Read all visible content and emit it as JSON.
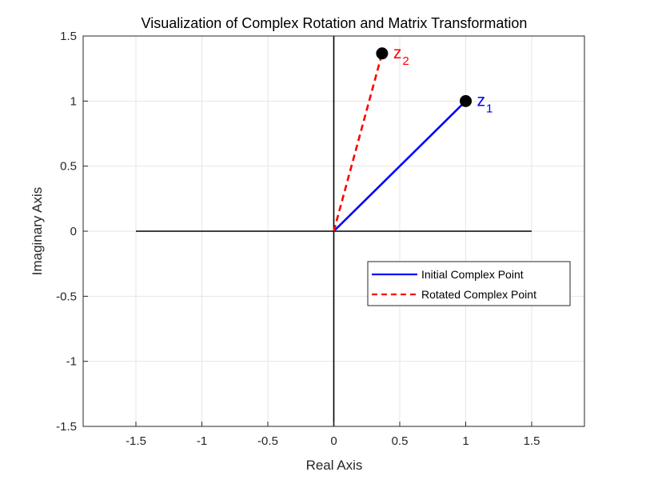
{
  "chart_data": {
    "type": "line",
    "title": "Visualization of Complex Rotation and Matrix Transformation",
    "xlabel": "Real Axis",
    "ylabel": "Imaginary Axis",
    "xlim": [
      -1.9,
      1.9
    ],
    "ylim": [
      -1.5,
      1.5
    ],
    "xticks": [
      -1.5,
      -1,
      -0.5,
      0,
      0.5,
      1,
      1.5
    ],
    "xtick_labels": [
      "-1.5",
      "-1",
      "-0.5",
      "0",
      "0.5",
      "1",
      "1.5"
    ],
    "yticks": [
      -1.5,
      -1,
      -0.5,
      0,
      0.5,
      1,
      1.5
    ],
    "ytick_labels": [
      "-1.5",
      "-1",
      "-0.5",
      "0",
      "0.5",
      "1",
      "1.5"
    ],
    "grid": true,
    "reference_axes": {
      "x_range": [
        -1.5,
        1.5
      ],
      "y_range": [
        -1.5,
        1.5
      ],
      "color": "#000000"
    },
    "series": [
      {
        "name": "Initial Complex Point",
        "x": [
          0,
          1
        ],
        "y": [
          0,
          1
        ],
        "color": "#0000ff",
        "style": "solid"
      },
      {
        "name": "Rotated Complex Point",
        "x": [
          0,
          0.366
        ],
        "y": [
          0,
          1.366
        ],
        "color": "#ff0000",
        "style": "dashed"
      }
    ],
    "points": [
      {
        "x": 1,
        "y": 1,
        "label_main": "z",
        "label_sub": "1",
        "label_color": "#0000ff"
      },
      {
        "x": 0.366,
        "y": 1.366,
        "label_main": "z",
        "label_sub": "2",
        "label_color": "#ff0000"
      }
    ],
    "legend": {
      "placement": "lower-right"
    }
  }
}
